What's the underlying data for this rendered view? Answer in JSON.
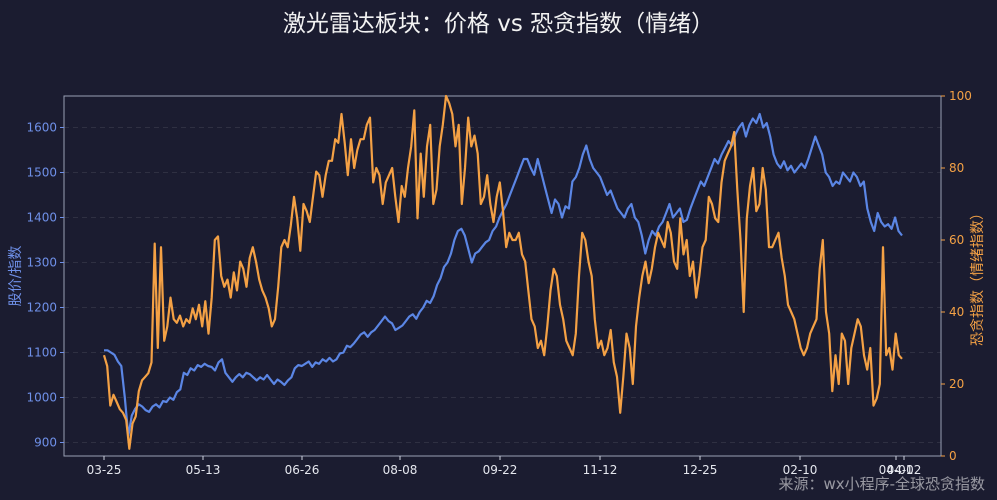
{
  "chart_data": {
    "type": "line",
    "title": "激光雷达板块：价格 vs 恐贪指数（情绪）",
    "watermark": "来源：wx小程序-全球恐贪指数",
    "y_left_label": "股价/指数",
    "y_right_label": "恐贪指数（情绪指数）",
    "y_left_ticks": [
      "900",
      "1000",
      "1100",
      "1200",
      "1300",
      "1400",
      "1500",
      "1600"
    ],
    "y_right_ticks": [
      "0",
      "20",
      "40",
      "60",
      "80",
      "100"
    ],
    "x_ticks": [
      "03-25",
      "05-13",
      "06-26",
      "08-08",
      "09-22",
      "11-12",
      "12-25",
      "02-10",
      "04-01",
      "04-02"
    ],
    "ylim_left": [
      870,
      1670
    ],
    "ylim_right": [
      0,
      100
    ],
    "grid": true,
    "colors": {
      "price": "#5b86e5",
      "sentiment": "#f4a145",
      "background": "#1b1c30",
      "left_axis": "#6f90e8",
      "right_axis": "#f4a145"
    },
    "series": [
      {
        "axis": "left",
        "values": [
          1105,
          1105,
          1100,
          1095,
          1080,
          1070,
          1000,
          915,
          960,
          975,
          985,
          980,
          972,
          968,
          980,
          985,
          978,
          992,
          990,
          1000,
          995,
          1012,
          1018,
          1055,
          1050,
          1065,
          1060,
          1072,
          1068,
          1075,
          1070,
          1068,
          1060,
          1078,
          1085,
          1055,
          1045,
          1035,
          1045,
          1052,
          1045,
          1055,
          1052,
          1045,
          1038,
          1045,
          1040,
          1050,
          1040,
          1030,
          1040,
          1035,
          1028,
          1038,
          1045,
          1065,
          1072,
          1070,
          1075,
          1080,
          1068,
          1078,
          1075,
          1085,
          1080,
          1088,
          1080,
          1085,
          1098,
          1100,
          1115,
          1112,
          1120,
          1130,
          1140,
          1145,
          1135,
          1145,
          1150,
          1160,
          1170,
          1180,
          1170,
          1165,
          1150,
          1155,
          1160,
          1170,
          1180,
          1185,
          1175,
          1190,
          1200,
          1215,
          1210,
          1225,
          1250,
          1265,
          1290,
          1300,
          1320,
          1350,
          1370,
          1375,
          1360,
          1330,
          1300,
          1320,
          1325,
          1335,
          1345,
          1350,
          1370,
          1380,
          1400,
          1415,
          1430,
          1450,
          1470,
          1490,
          1510,
          1530,
          1530,
          1510,
          1495,
          1530,
          1500,
          1470,
          1440,
          1410,
          1440,
          1430,
          1400,
          1425,
          1420,
          1480,
          1490,
          1510,
          1540,
          1560,
          1530,
          1510,
          1500,
          1490,
          1470,
          1450,
          1460,
          1440,
          1420,
          1410,
          1400,
          1420,
          1430,
          1400,
          1390,
          1360,
          1320,
          1350,
          1370,
          1360,
          1380,
          1390,
          1410,
          1430,
          1400,
          1410,
          1420,
          1390,
          1395,
          1420,
          1440,
          1460,
          1480,
          1470,
          1490,
          1510,
          1530,
          1520,
          1540,
          1555,
          1570,
          1560,
          1585,
          1600,
          1610,
          1580,
          1605,
          1620,
          1610,
          1630,
          1600,
          1610,
          1580,
          1540,
          1520,
          1510,
          1525,
          1505,
          1515,
          1500,
          1510,
          1520,
          1510,
          1530,
          1555,
          1580,
          1560,
          1540,
          1500,
          1490,
          1470,
          1480,
          1475,
          1500,
          1490,
          1480,
          1500,
          1490,
          1470,
          1480,
          1420,
          1390,
          1370,
          1410,
          1390,
          1380,
          1385,
          1375,
          1400,
          1370,
          1360
        ]
      },
      {
        "axis": "right",
        "values": [
          28,
          25,
          14,
          17,
          15,
          13,
          12,
          10,
          2,
          9,
          11,
          18,
          21,
          22,
          23,
          26,
          59,
          30,
          58,
          32,
          36,
          44,
          38,
          37,
          39,
          36,
          38,
          37,
          41,
          38,
          42,
          36,
          43,
          34,
          44,
          60,
          61,
          50,
          47,
          49,
          44,
          51,
          46,
          54,
          52,
          47,
          55,
          58,
          54,
          49,
          46,
          44,
          41,
          36,
          38,
          47,
          58,
          60,
          58,
          64,
          72,
          66,
          57,
          70,
          68,
          65,
          72,
          79,
          78,
          72,
          78,
          82,
          82,
          88,
          87,
          95,
          87,
          78,
          88,
          80,
          85,
          88,
          88,
          92,
          94,
          76,
          80,
          78,
          70,
          76,
          78,
          80,
          72,
          65,
          75,
          72,
          80,
          86,
          96,
          66,
          84,
          72,
          86,
          92,
          70,
          74,
          86,
          92,
          100,
          98,
          95,
          86,
          92,
          70,
          80,
          94,
          86,
          89,
          84,
          70,
          72,
          78,
          70,
          65,
          72,
          76,
          68,
          58,
          62,
          60,
          60,
          62,
          56,
          54,
          46,
          38,
          36,
          30,
          32,
          28,
          36,
          46,
          52,
          50,
          42,
          38,
          32,
          30,
          28,
          34,
          50,
          62,
          60,
          54,
          50,
          38,
          30,
          32,
          28,
          30,
          35,
          26,
          22,
          12,
          22,
          34,
          30,
          20,
          36,
          44,
          50,
          54,
          48,
          52,
          58,
          62,
          60,
          58,
          65,
          62,
          54,
          52,
          66,
          56,
          60,
          50,
          54,
          44,
          50,
          58,
          60,
          72,
          70,
          66,
          65,
          76,
          82,
          84,
          86,
          90,
          74,
          60,
          40,
          66,
          75,
          80,
          68,
          70,
          80,
          74,
          58,
          58,
          60,
          62,
          55,
          50,
          42,
          40,
          38,
          34,
          30,
          28,
          30,
          34,
          36,
          38,
          52,
          60,
          40,
          34,
          18,
          28,
          20,
          34,
          32,
          20,
          30,
          34,
          38,
          36,
          28,
          24,
          30,
          14,
          16,
          20,
          58,
          28,
          30,
          24,
          34,
          28,
          27
        ]
      }
    ]
  }
}
